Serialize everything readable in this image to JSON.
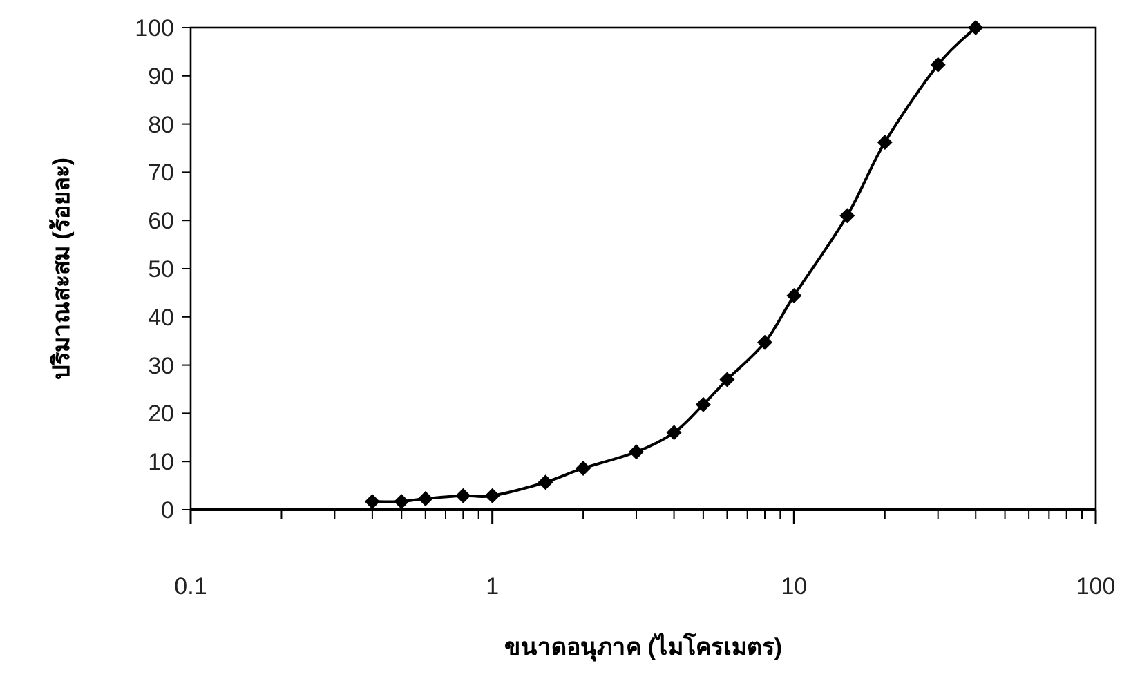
{
  "chart_data": {
    "type": "line",
    "xlabel": "ขนาดอนุภาค (ไมโครเมตร)",
    "ylabel": "ปริมาณสะสม (ร้อยละ)",
    "x": [
      0.4,
      0.5,
      0.6,
      0.8,
      1,
      1.5,
      2,
      3,
      4,
      5,
      6,
      8,
      10,
      15,
      20,
      30,
      40
    ],
    "series": [
      {
        "color": "#000000",
        "values": [
          1.7,
          1.7,
          2.3,
          2.9,
          2.9,
          5.7,
          8.6,
          12,
          16,
          21.8,
          27,
          34.7,
          44.4,
          61,
          76.2,
          92.3,
          100
        ]
      }
    ],
    "xlim": [
      0.1,
      100
    ],
    "ylim": [
      0,
      100
    ],
    "xticks": [
      0.1,
      1,
      10,
      100
    ],
    "yticks": [
      0,
      10,
      20,
      30,
      40,
      50,
      60,
      70,
      80,
      90,
      100
    ],
    "log": "x",
    "marker": "diamond",
    "line_style": "solid",
    "grid": false
  }
}
